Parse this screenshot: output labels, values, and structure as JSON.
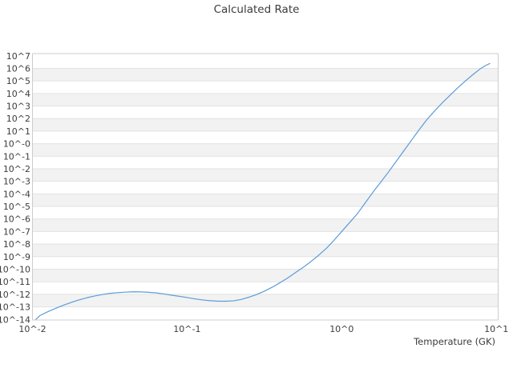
{
  "title": "Calculated Rate",
  "colors": {
    "line": "#5b9cd9",
    "band_gray": "#f2f2f2",
    "band_white": "#ffffff",
    "gridline": "#e2e2e2",
    "plot_border": "#cccccc",
    "text": "#3c3c3c"
  },
  "chart_data": {
    "type": "line",
    "title": "Calculated Rate",
    "xlabel": "Temperature (GK)",
    "ylabel": "",
    "x_scale": "log10",
    "y_scale": "log10",
    "xlim_log10": [
      -2,
      1.013
    ],
    "ylim_log10": [
      -14.15,
      7.17
    ],
    "grid": "horizontal-bands-alternating",
    "legend": "none",
    "x_ticks": [
      {
        "label": "10^-2",
        "log10": -2
      },
      {
        "label": "10^-1",
        "log10": -1
      },
      {
        "label": "10^0",
        "log10": 0
      },
      {
        "label": "10^1",
        "log10": 1
      }
    ],
    "y_ticks": [
      {
        "label": "10^7",
        "log10": 7
      },
      {
        "label": "10^6",
        "log10": 6
      },
      {
        "label": "10^5",
        "log10": 5
      },
      {
        "label": "10^4",
        "log10": 4
      },
      {
        "label": "10^3",
        "log10": 3
      },
      {
        "label": "10^2",
        "log10": 2
      },
      {
        "label": "10^1",
        "log10": 1
      },
      {
        "label": "10^-0",
        "log10": 0
      },
      {
        "label": "10^-1",
        "log10": -1
      },
      {
        "label": "10^-2",
        "log10": -2
      },
      {
        "label": "10^-3",
        "log10": -3
      },
      {
        "label": "10^-4",
        "log10": -4
      },
      {
        "label": "10^-5",
        "log10": -5
      },
      {
        "label": "10^-6",
        "log10": -6
      },
      {
        "label": "10^-7",
        "log10": -7
      },
      {
        "label": "10^-8",
        "log10": -8
      },
      {
        "label": "10^-9",
        "log10": -9
      },
      {
        "label": "10^-10",
        "log10": -10
      },
      {
        "label": "10^-11",
        "log10": -11
      },
      {
        "label": "10^-12",
        "log10": -12
      },
      {
        "label": "10^-13",
        "log10": -13
      },
      {
        "label": "10^-14",
        "log10": -14
      }
    ],
    "series": [
      {
        "name": "calculated rate",
        "color": "#5b9cd9",
        "points_log10": [
          [
            -2.0,
            -14.25
          ],
          [
            -1.95,
            -13.68
          ],
          [
            -1.9,
            -13.38
          ],
          [
            -1.85,
            -13.12
          ],
          [
            -1.8,
            -12.87
          ],
          [
            -1.75,
            -12.65
          ],
          [
            -1.7,
            -12.45
          ],
          [
            -1.65,
            -12.28
          ],
          [
            -1.6,
            -12.14
          ],
          [
            -1.55,
            -12.02
          ],
          [
            -1.5,
            -11.93
          ],
          [
            -1.45,
            -11.87
          ],
          [
            -1.4,
            -11.83
          ],
          [
            -1.35,
            -11.8
          ],
          [
            -1.3,
            -11.81
          ],
          [
            -1.25,
            -11.84
          ],
          [
            -1.2,
            -11.89
          ],
          [
            -1.15,
            -11.97
          ],
          [
            -1.1,
            -12.07
          ],
          [
            -1.05,
            -12.16
          ],
          [
            -1.0,
            -12.26
          ],
          [
            -0.95,
            -12.36
          ],
          [
            -0.9,
            -12.45
          ],
          [
            -0.85,
            -12.51
          ],
          [
            -0.8,
            -12.55
          ],
          [
            -0.75,
            -12.55
          ],
          [
            -0.7,
            -12.52
          ],
          [
            -0.65,
            -12.41
          ],
          [
            -0.6,
            -12.23
          ],
          [
            -0.55,
            -12.02
          ],
          [
            -0.5,
            -11.75
          ],
          [
            -0.45,
            -11.44
          ],
          [
            -0.4,
            -11.08
          ],
          [
            -0.35,
            -10.7
          ],
          [
            -0.3,
            -10.28
          ],
          [
            -0.25,
            -9.86
          ],
          [
            -0.2,
            -9.4
          ],
          [
            -0.15,
            -8.9
          ],
          [
            -0.1,
            -8.35
          ],
          [
            -0.05,
            -7.7
          ],
          [
            0.0,
            -7.0
          ],
          [
            0.05,
            -6.3
          ],
          [
            0.1,
            -5.6
          ],
          [
            0.15,
            -4.75
          ],
          [
            0.2,
            -3.9
          ],
          [
            0.25,
            -3.1
          ],
          [
            0.3,
            -2.3
          ],
          [
            0.35,
            -1.45
          ],
          [
            0.4,
            -0.6
          ],
          [
            0.45,
            0.25
          ],
          [
            0.5,
            1.1
          ],
          [
            0.55,
            1.9
          ],
          [
            0.6,
            2.6
          ],
          [
            0.65,
            3.25
          ],
          [
            0.7,
            3.85
          ],
          [
            0.75,
            4.45
          ],
          [
            0.8,
            5.0
          ],
          [
            0.85,
            5.52
          ],
          [
            0.9,
            6.0
          ],
          [
            0.93,
            6.22
          ],
          [
            0.96,
            6.4
          ]
        ]
      }
    ]
  }
}
